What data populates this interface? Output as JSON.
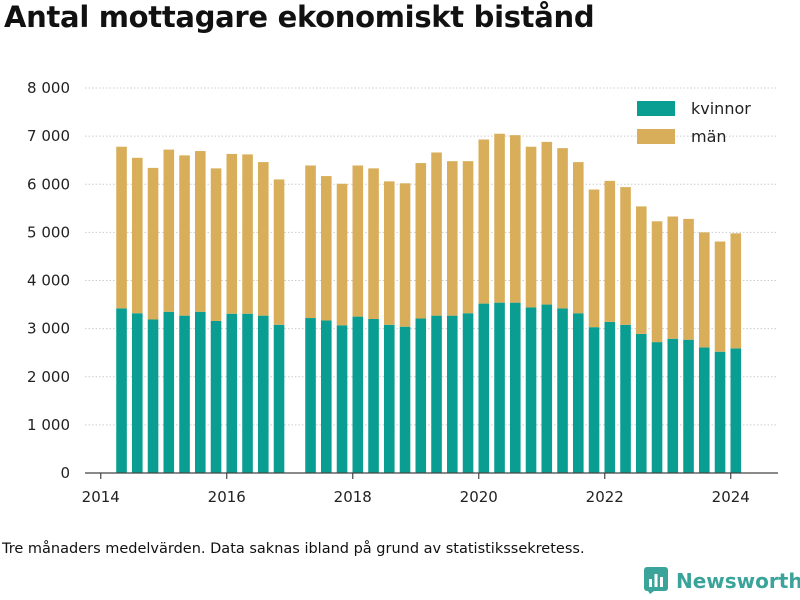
{
  "title": "Antal mottagare ekonomiskt bistånd",
  "footnote": "Tre månaders medelvärden. Data saknas ibland på grund av statistikssekretess.",
  "brand": {
    "name": "Newsworthy",
    "icon": "newsworthy-logo-icon",
    "color": "#3aa39a"
  },
  "colors": {
    "kvinnor": "#0a9e92",
    "man": "#d8ae5a",
    "grid": "#cccccc",
    "axis": "#444444"
  },
  "chart_data": {
    "type": "bar",
    "stacked": true,
    "title": "Antal mottagare ekonomiskt bistånd",
    "xlabel": "",
    "ylabel": "",
    "ylim": [
      0,
      8000
    ],
    "xlim": [
      2013.75,
      2024.75
    ],
    "yticks": [
      0,
      1000,
      2000,
      3000,
      4000,
      5000,
      6000,
      7000,
      8000
    ],
    "ytick_labels": [
      "0",
      "1 000",
      "2 000",
      "3 000",
      "4 000",
      "5 000",
      "6 000",
      "7 000",
      "8 000"
    ],
    "xticks": [
      2014,
      2016,
      2018,
      2020,
      2022,
      2024
    ],
    "xtick_labels": [
      "2014",
      "2016",
      "2018",
      "2020",
      "2022",
      "2024"
    ],
    "grid": true,
    "legend_position": "top-right",
    "x": [
      2014.33,
      2014.58,
      2014.83,
      2015.08,
      2015.33,
      2015.58,
      2015.83,
      2016.08,
      2016.33,
      2016.58,
      2016.83,
      2017.33,
      2017.58,
      2017.83,
      2018.08,
      2018.33,
      2018.58,
      2018.83,
      2019.08,
      2019.33,
      2019.58,
      2019.83,
      2020.08,
      2020.33,
      2020.58,
      2020.83,
      2021.08,
      2021.33,
      2021.58,
      2021.83,
      2022.08,
      2022.33,
      2022.58,
      2022.83,
      2023.08,
      2023.33,
      2023.58,
      2023.83,
      2024.08
    ],
    "series": [
      {
        "name": "kvinnor",
        "color": "#0a9e92",
        "values": [
          3420,
          3320,
          3190,
          3350,
          3270,
          3350,
          3160,
          3310,
          3310,
          3270,
          3080,
          3220,
          3170,
          3070,
          3250,
          3200,
          3080,
          3040,
          3210,
          3270,
          3270,
          3320,
          3520,
          3540,
          3540,
          3440,
          3500,
          3420,
          3320,
          3030,
          3140,
          3080,
          2890,
          2720,
          2790,
          2770,
          2610,
          2520,
          2590
        ]
      },
      {
        "name": "män",
        "color": "#d8ae5a",
        "values": [
          3360,
          3230,
          3150,
          3370,
          3330,
          3340,
          3170,
          3320,
          3310,
          3190,
          3020,
          3170,
          3000,
          2940,
          3140,
          3130,
          2980,
          2980,
          3230,
          3390,
          3210,
          3160,
          3410,
          3510,
          3480,
          3340,
          3380,
          3330,
          3140,
          2860,
          2930,
          2860,
          2650,
          2510,
          2540,
          2510,
          2390,
          2290,
          2390
        ]
      }
    ]
  }
}
